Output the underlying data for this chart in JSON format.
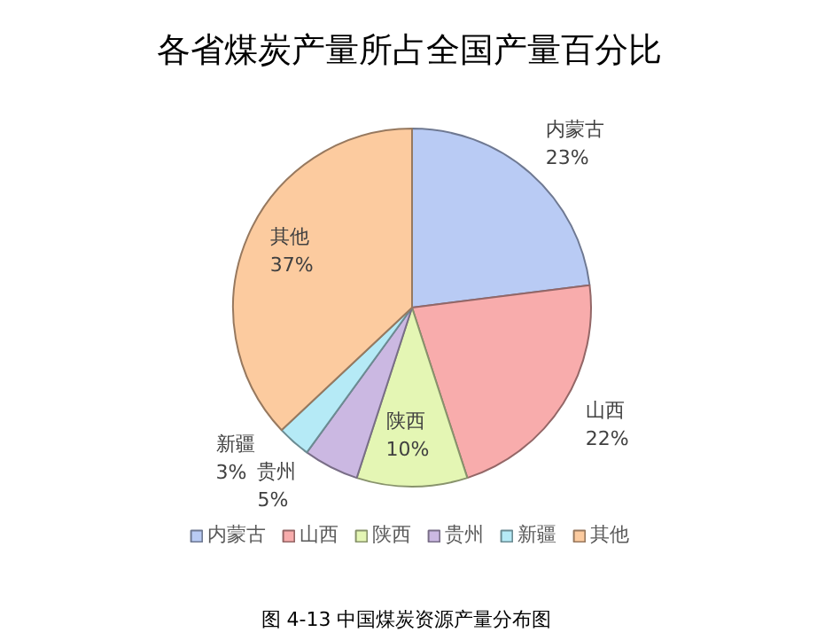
{
  "chart_data": {
    "type": "pie",
    "title": "各省煤炭产量所占全国产量百分比",
    "categories": [
      "内蒙古",
      "山西",
      "陕西",
      "贵州",
      "新疆",
      "其他"
    ],
    "values": [
      23,
      22,
      10,
      5,
      3,
      37
    ],
    "value_labels": [
      "23%",
      "22%",
      "10%",
      "5%",
      "3%",
      "37%"
    ],
    "colors": [
      "#b9cbf4",
      "#f8acac",
      "#e4f6b4",
      "#cbb8e2",
      "#b5eaf6",
      "#fccb9f"
    ],
    "legend": "bottom",
    "annotations": [
      "图 4-13  中国煤炭资源产量分布图"
    ]
  }
}
